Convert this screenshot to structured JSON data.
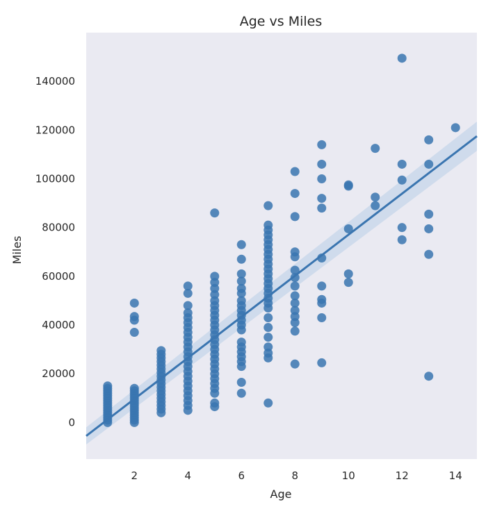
{
  "chart_data": {
    "type": "scatter",
    "title": "Age vs Miles",
    "xlabel": "Age",
    "ylabel": "Miles",
    "xlim": [
      0.2,
      14.8
    ],
    "ylim": [
      -15000,
      160000
    ],
    "xticks": [
      2,
      4,
      6,
      8,
      10,
      12,
      14
    ],
    "yticks": [
      0,
      20000,
      40000,
      60000,
      80000,
      100000,
      120000,
      140000
    ],
    "grid": false,
    "colors": {
      "background": "#eaeaf2",
      "points": "#3a75b0",
      "line": "#3a75b0",
      "band": "#c6d6ea"
    },
    "regression": {
      "x": [
        0.2,
        14.8
      ],
      "y": [
        -5500,
        117500
      ],
      "ci_half_width_at_ends": [
        3500,
        6000
      ]
    },
    "points": [
      [
        1,
        0
      ],
      [
        1,
        1000
      ],
      [
        1,
        2000
      ],
      [
        1,
        3000
      ],
      [
        1,
        4000
      ],
      [
        1,
        5000
      ],
      [
        1,
        6000
      ],
      [
        1,
        7000
      ],
      [
        1,
        8000
      ],
      [
        1,
        9000
      ],
      [
        1,
        10000
      ],
      [
        1,
        11000
      ],
      [
        1,
        12000
      ],
      [
        1,
        13000
      ],
      [
        1,
        14000
      ],
      [
        1,
        15000
      ],
      [
        2,
        0
      ],
      [
        2,
        1000
      ],
      [
        2,
        2000
      ],
      [
        2,
        3000
      ],
      [
        2,
        4000
      ],
      [
        2,
        5000
      ],
      [
        2,
        6000
      ],
      [
        2,
        7000
      ],
      [
        2,
        8000
      ],
      [
        2,
        9000
      ],
      [
        2,
        10000
      ],
      [
        2,
        11000
      ],
      [
        2,
        12000
      ],
      [
        2,
        13000
      ],
      [
        2,
        14000
      ],
      [
        2,
        37000
      ],
      [
        2,
        42000
      ],
      [
        2,
        43500
      ],
      [
        2,
        49000
      ],
      [
        3,
        4000
      ],
      [
        3,
        5500
      ],
      [
        3,
        7000
      ],
      [
        3,
        8500
      ],
      [
        3,
        10000
      ],
      [
        3,
        11500
      ],
      [
        3,
        13000
      ],
      [
        3,
        14500
      ],
      [
        3,
        16000
      ],
      [
        3,
        17500
      ],
      [
        3,
        19000
      ],
      [
        3,
        20500
      ],
      [
        3,
        22000
      ],
      [
        3,
        23500
      ],
      [
        3,
        25000
      ],
      [
        3,
        26500
      ],
      [
        3,
        28000
      ],
      [
        3,
        29500
      ],
      [
        4,
        5000
      ],
      [
        4,
        7000
      ],
      [
        4,
        9000
      ],
      [
        4,
        11000
      ],
      [
        4,
        13000
      ],
      [
        4,
        15000
      ],
      [
        4,
        17000
      ],
      [
        4,
        19000
      ],
      [
        4,
        21000
      ],
      [
        4,
        23000
      ],
      [
        4,
        25000
      ],
      [
        4,
        27000
      ],
      [
        4,
        29000
      ],
      [
        4,
        31000
      ],
      [
        4,
        33000
      ],
      [
        4,
        35000
      ],
      [
        4,
        37000
      ],
      [
        4,
        39000
      ],
      [
        4,
        41000
      ],
      [
        4,
        43000
      ],
      [
        4,
        45000
      ],
      [
        4,
        48000
      ],
      [
        4,
        53000
      ],
      [
        4,
        56000
      ],
      [
        5,
        6500
      ],
      [
        5,
        8000
      ],
      [
        5,
        12000
      ],
      [
        5,
        14000
      ],
      [
        5,
        16000
      ],
      [
        5,
        18000
      ],
      [
        5,
        20000
      ],
      [
        5,
        22000
      ],
      [
        5,
        24000
      ],
      [
        5,
        26000
      ],
      [
        5,
        28000
      ],
      [
        5,
        30000
      ],
      [
        5,
        32000
      ],
      [
        5,
        34000
      ],
      [
        5,
        36000
      ],
      [
        5,
        38000
      ],
      [
        5,
        40000
      ],
      [
        5,
        42000
      ],
      [
        5,
        44000
      ],
      [
        5,
        46000
      ],
      [
        5,
        48000
      ],
      [
        5,
        50000
      ],
      [
        5,
        52500
      ],
      [
        5,
        55000
      ],
      [
        5,
        57500
      ],
      [
        5,
        60000
      ],
      [
        5,
        86000
      ],
      [
        6,
        12000
      ],
      [
        6,
        16500
      ],
      [
        6,
        23000
      ],
      [
        6,
        25000
      ],
      [
        6,
        27000
      ],
      [
        6,
        29000
      ],
      [
        6,
        31000
      ],
      [
        6,
        33000
      ],
      [
        6,
        38000
      ],
      [
        6,
        40000
      ],
      [
        6,
        42000
      ],
      [
        6,
        44000
      ],
      [
        6,
        46000
      ],
      [
        6,
        48000
      ],
      [
        6,
        50000
      ],
      [
        6,
        53000
      ],
      [
        6,
        55000
      ],
      [
        6,
        58000
      ],
      [
        6,
        61000
      ],
      [
        6,
        67000
      ],
      [
        6,
        73000
      ],
      [
        7,
        8000
      ],
      [
        7,
        26500
      ],
      [
        7,
        28500
      ],
      [
        7,
        31000
      ],
      [
        7,
        35000
      ],
      [
        7,
        39000
      ],
      [
        7,
        43000
      ],
      [
        7,
        47000
      ],
      [
        7,
        49000
      ],
      [
        7,
        51000
      ],
      [
        7,
        53000
      ],
      [
        7,
        55000
      ],
      [
        7,
        57000
      ],
      [
        7,
        59000
      ],
      [
        7,
        61000
      ],
      [
        7,
        63000
      ],
      [
        7,
        65000
      ],
      [
        7,
        67000
      ],
      [
        7,
        69000
      ],
      [
        7,
        71000
      ],
      [
        7,
        73000
      ],
      [
        7,
        75000
      ],
      [
        7,
        77000
      ],
      [
        7,
        79000
      ],
      [
        7,
        81000
      ],
      [
        7,
        89000
      ],
      [
        8,
        24000
      ],
      [
        8,
        37500
      ],
      [
        8,
        41000
      ],
      [
        8,
        43500
      ],
      [
        8,
        46000
      ],
      [
        8,
        49000
      ],
      [
        8,
        52000
      ],
      [
        8,
        56000
      ],
      [
        8,
        59500
      ],
      [
        8,
        62500
      ],
      [
        8,
        68000
      ],
      [
        8,
        70000
      ],
      [
        8,
        84500
      ],
      [
        8,
        94000
      ],
      [
        8,
        103000
      ],
      [
        9,
        24500
      ],
      [
        9,
        43000
      ],
      [
        9,
        49000
      ],
      [
        9,
        50500
      ],
      [
        9,
        56000
      ],
      [
        9,
        67500
      ],
      [
        9,
        88000
      ],
      [
        9,
        92000
      ],
      [
        9,
        100000
      ],
      [
        9,
        106000
      ],
      [
        9,
        114000
      ],
      [
        10,
        57500
      ],
      [
        10,
        61000
      ],
      [
        10,
        79500
      ],
      [
        10,
        97000
      ],
      [
        10,
        97500
      ],
      [
        11,
        89000
      ],
      [
        11,
        92500
      ],
      [
        11,
        112500
      ],
      [
        12,
        75000
      ],
      [
        12,
        80000
      ],
      [
        12,
        99500
      ],
      [
        12,
        106000
      ],
      [
        12,
        149500
      ],
      [
        13,
        19000
      ],
      [
        13,
        69000
      ],
      [
        13,
        79500
      ],
      [
        13,
        85500
      ],
      [
        13,
        106000
      ],
      [
        13,
        116000
      ],
      [
        14,
        121000
      ]
    ]
  }
}
